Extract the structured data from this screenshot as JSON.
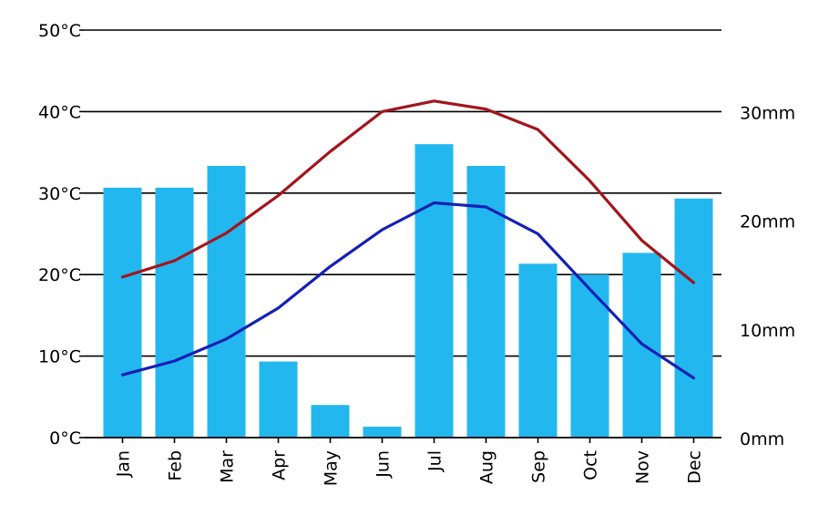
{
  "chart_data": {
    "type": "bar",
    "categories": [
      "Jan",
      "Feb",
      "Mar",
      "Apr",
      "May",
      "Jun",
      "Jul",
      "Aug",
      "Sep",
      "Oct",
      "Nov",
      "Dec"
    ],
    "y_left": {
      "ticks": [
        "0°C",
        "10°C",
        "20°C",
        "30°C",
        "40°C",
        "50°C"
      ],
      "ylim": [
        0,
        50
      ]
    },
    "y_right": {
      "ticks": [
        "0mm",
        "10mm",
        "20mm",
        "30mm"
      ],
      "ylim": [
        0,
        37.5
      ]
    },
    "grid": true,
    "series": [
      {
        "kind": "bar",
        "axis": "right",
        "values": [
          23,
          23,
          25,
          7,
          3,
          1,
          27,
          25,
          16,
          15,
          17,
          22
        ],
        "color": "#22b7ee"
      },
      {
        "kind": "line",
        "axis": "left",
        "values": [
          19.7,
          21.7,
          25.1,
          29.7,
          35.1,
          40.0,
          41.3,
          40.3,
          37.8,
          31.5,
          24.2,
          19.0
        ],
        "color": "#a3151c"
      },
      {
        "kind": "line",
        "axis": "left",
        "values": [
          7.7,
          9.4,
          12.1,
          15.9,
          21.0,
          25.5,
          28.8,
          28.3,
          25.0,
          18.2,
          11.5,
          7.3
        ],
        "color": "#1520b5"
      }
    ]
  }
}
